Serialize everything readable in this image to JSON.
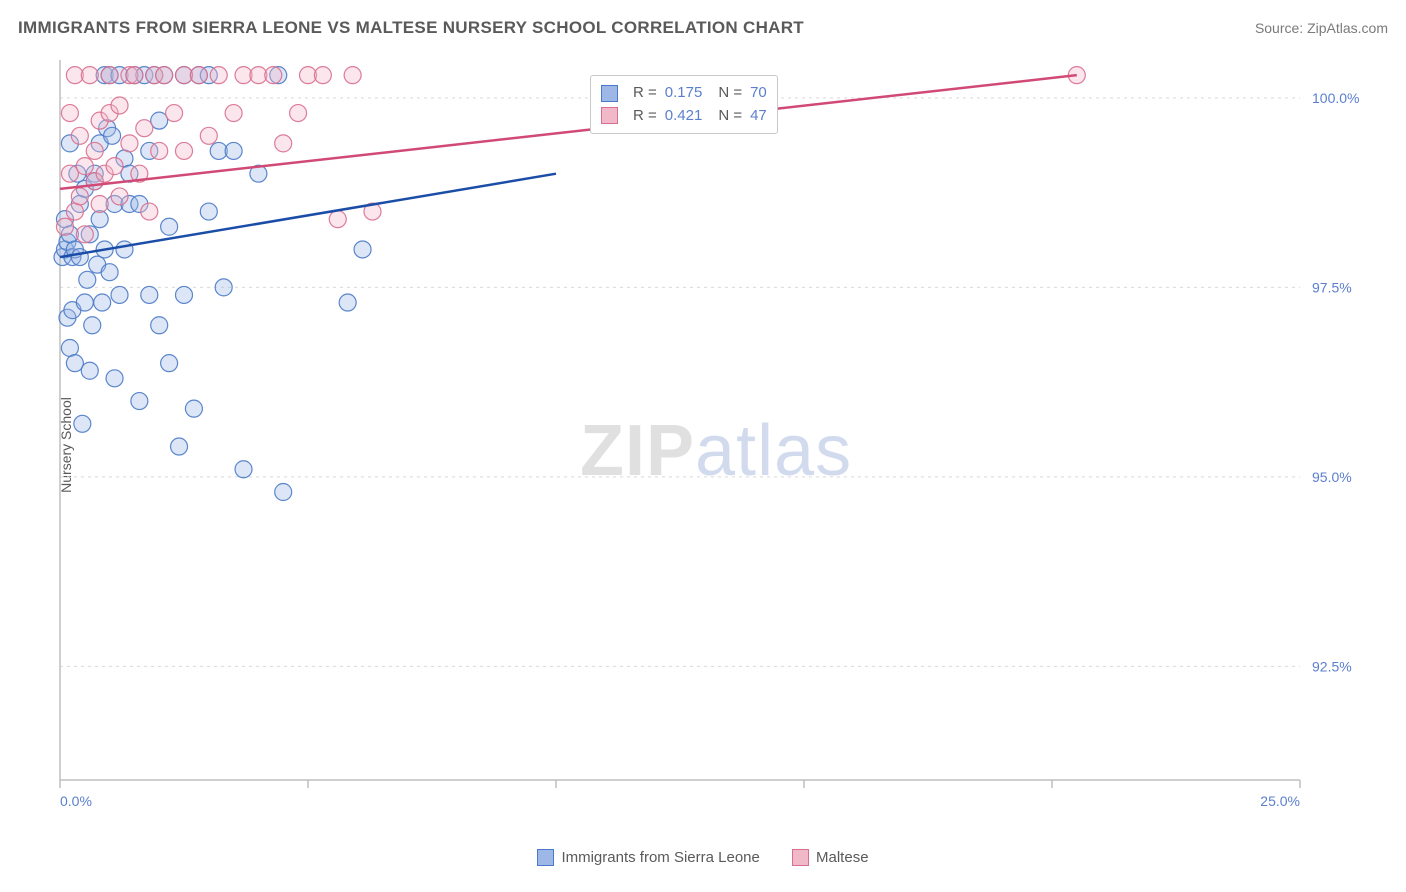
{
  "title": "IMMIGRANTS FROM SIERRA LEONE VS MALTESE NURSERY SCHOOL CORRELATION CHART",
  "source": "Source: ZipAtlas.com",
  "ylabel": "Nursery School",
  "watermark_zip": "ZIP",
  "watermark_atlas": "atlas",
  "chart": {
    "type": "scatter",
    "xlim": [
      0.0,
      25.0
    ],
    "ylim": [
      91.0,
      100.5
    ],
    "x_ticks": [
      0.0,
      5.0,
      10.0,
      15.0,
      20.0,
      25.0
    ],
    "x_tick_labels": [
      "0.0%",
      "",
      "",
      "",
      "",
      "25.0%"
    ],
    "y_ticks": [
      92.5,
      95.0,
      97.5,
      100.0
    ],
    "y_tick_labels": [
      "92.5%",
      "95.0%",
      "97.5%",
      "100.0%"
    ],
    "grid_color": "#d9d9d9",
    "axis_color": "#bfbfbf",
    "background": "#ffffff",
    "marker_radius": 8.5,
    "marker_fill_opacity": 0.35,
    "marker_stroke_opacity": 0.9,
    "marker_stroke_width": 1.2,
    "trend_line_width": 2.5
  },
  "series": {
    "sierra": {
      "label": "Immigrants from Sierra Leone",
      "color_stroke": "#4a7ac7",
      "color_fill": "#9db8e6",
      "trend_color": "#1b4da8",
      "R": "0.175",
      "N": "70",
      "trend": {
        "x1": 0.0,
        "y1": 97.9,
        "x2": 10.0,
        "y2": 99.0
      },
      "points": [
        [
          0.05,
          97.9
        ],
        [
          0.1,
          98.0
        ],
        [
          0.1,
          98.4
        ],
        [
          0.15,
          97.1
        ],
        [
          0.15,
          98.1
        ],
        [
          0.2,
          96.7
        ],
        [
          0.2,
          99.4
        ],
        [
          0.2,
          98.2
        ],
        [
          0.25,
          97.2
        ],
        [
          0.25,
          97.9
        ],
        [
          0.3,
          98.0
        ],
        [
          0.3,
          96.5
        ],
        [
          0.35,
          99.0
        ],
        [
          0.4,
          97.9
        ],
        [
          0.4,
          98.6
        ],
        [
          0.45,
          95.7
        ],
        [
          0.5,
          97.3
        ],
        [
          0.5,
          98.8
        ],
        [
          0.55,
          97.6
        ],
        [
          0.6,
          98.2
        ],
        [
          0.6,
          96.4
        ],
        [
          0.65,
          97.0
        ],
        [
          0.7,
          99.0
        ],
        [
          0.7,
          98.9
        ],
        [
          0.75,
          97.8
        ],
        [
          0.8,
          98.4
        ],
        [
          0.8,
          99.4
        ],
        [
          0.85,
          97.3
        ],
        [
          0.9,
          100.3
        ],
        [
          0.9,
          98.0
        ],
        [
          0.95,
          99.6
        ],
        [
          1.0,
          97.7
        ],
        [
          1.0,
          100.3
        ],
        [
          1.05,
          99.5
        ],
        [
          1.1,
          98.6
        ],
        [
          1.1,
          96.3
        ],
        [
          1.2,
          100.3
        ],
        [
          1.2,
          97.4
        ],
        [
          1.3,
          99.2
        ],
        [
          1.3,
          98.0
        ],
        [
          1.4,
          99.0
        ],
        [
          1.4,
          98.6
        ],
        [
          1.5,
          100.3
        ],
        [
          1.6,
          96.0
        ],
        [
          1.6,
          98.6
        ],
        [
          1.7,
          100.3
        ],
        [
          1.8,
          99.3
        ],
        [
          1.8,
          97.4
        ],
        [
          1.9,
          100.3
        ],
        [
          2.0,
          99.7
        ],
        [
          2.0,
          97.0
        ],
        [
          2.1,
          100.3
        ],
        [
          2.2,
          98.3
        ],
        [
          2.2,
          96.5
        ],
        [
          2.4,
          95.4
        ],
        [
          2.5,
          100.3
        ],
        [
          2.5,
          97.4
        ],
        [
          2.7,
          95.9
        ],
        [
          2.8,
          100.3
        ],
        [
          3.0,
          100.3
        ],
        [
          3.0,
          98.5
        ],
        [
          3.2,
          99.3
        ],
        [
          3.3,
          97.5
        ],
        [
          3.5,
          99.3
        ],
        [
          3.7,
          95.1
        ],
        [
          4.0,
          99.0
        ],
        [
          4.4,
          100.3
        ],
        [
          4.5,
          94.8
        ],
        [
          5.8,
          97.3
        ],
        [
          6.1,
          98.0
        ]
      ]
    },
    "maltese": {
      "label": "Maltese",
      "color_stroke": "#d96f8e",
      "color_fill": "#f0b8c8",
      "trend_color": "#d14a75",
      "R": "0.421",
      "N": "47",
      "trend": {
        "x1": 0.0,
        "y1": 98.8,
        "x2": 20.5,
        "y2": 100.3
      },
      "points": [
        [
          0.1,
          98.3
        ],
        [
          0.2,
          99.0
        ],
        [
          0.2,
          99.8
        ],
        [
          0.3,
          98.5
        ],
        [
          0.3,
          100.3
        ],
        [
          0.4,
          98.7
        ],
        [
          0.4,
          99.5
        ],
        [
          0.5,
          98.2
        ],
        [
          0.5,
          99.1
        ],
        [
          0.6,
          100.3
        ],
        [
          0.7,
          98.9
        ],
        [
          0.7,
          99.3
        ],
        [
          0.8,
          98.6
        ],
        [
          0.8,
          99.7
        ],
        [
          0.9,
          99.0
        ],
        [
          1.0,
          99.8
        ],
        [
          1.0,
          100.3
        ],
        [
          1.1,
          99.1
        ],
        [
          1.2,
          99.9
        ],
        [
          1.2,
          98.7
        ],
        [
          1.4,
          100.3
        ],
        [
          1.4,
          99.4
        ],
        [
          1.5,
          100.3
        ],
        [
          1.6,
          99.0
        ],
        [
          1.7,
          99.6
        ],
        [
          1.8,
          98.5
        ],
        [
          1.9,
          100.3
        ],
        [
          2.0,
          99.3
        ],
        [
          2.1,
          100.3
        ],
        [
          2.3,
          99.8
        ],
        [
          2.5,
          100.3
        ],
        [
          2.5,
          99.3
        ],
        [
          2.8,
          100.3
        ],
        [
          3.0,
          99.5
        ],
        [
          3.2,
          100.3
        ],
        [
          3.5,
          99.8
        ],
        [
          3.7,
          100.3
        ],
        [
          4.0,
          100.3
        ],
        [
          4.3,
          100.3
        ],
        [
          4.5,
          99.4
        ],
        [
          4.8,
          99.8
        ],
        [
          5.0,
          100.3
        ],
        [
          5.3,
          100.3
        ],
        [
          5.6,
          98.4
        ],
        [
          5.9,
          100.3
        ],
        [
          6.3,
          98.5
        ],
        [
          20.5,
          100.3
        ]
      ]
    }
  },
  "legend": {
    "sierra_label": "Immigrants from Sierra Leone",
    "maltese_label": "Maltese"
  },
  "stats_labels": {
    "R": "R =",
    "N": "N ="
  }
}
